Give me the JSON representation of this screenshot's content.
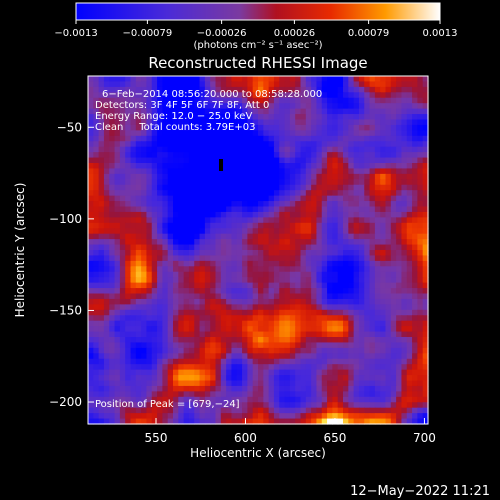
{
  "chart_data": {
    "type": "heatmap",
    "title": "Reconstructed RHESSI Image",
    "xlabel": "Heliocentric X (arcsec)",
    "ylabel": "Heliocentric Y (arcsec)",
    "xlim": [
      512,
      702
    ],
    "ylim": [
      -212,
      -22
    ],
    "x_ticks": [
      550,
      600,
      650,
      700
    ],
    "y_ticks": [
      -50,
      -100,
      -150,
      -200
    ],
    "x_tick_labels": [
      "550",
      "600",
      "650",
      "700"
    ],
    "y_tick_labels": [
      "−50",
      "−100",
      "−150",
      "−200"
    ],
    "colorbar": {
      "range": [
        -0.0013,
        0.0013
      ],
      "tick_values": [
        -0.0013,
        -0.00079,
        -0.00026,
        0.00026,
        0.00079,
        0.0013
      ],
      "tick_labels": [
        "−0.0013",
        "−0.00079",
        "−0.00026",
        "0.00026",
        "0.00079",
        "0.0013"
      ],
      "units": "(photons cm⁻² s⁻¹ asec⁻²)"
    },
    "annotations": [
      "6−Feb−2014 08:56:20.000 to 08:58:28.000",
      "Detectors: 3F 4F 5F 6F 7F 8F, Att 0",
      "Energy Range: 12.0 − 25.0 keV",
      "Clean     Total counts: 3.79E+03"
    ],
    "peak_label": "Position of Peak = [679,−24]",
    "colors": {
      "negative": "#0000ff",
      "zero": "#7a3fa0",
      "mid_positive": "#e02000",
      "high_positive": "#ffffff"
    }
  },
  "footer": {
    "timestamp": "12−May−2022 11:21"
  }
}
